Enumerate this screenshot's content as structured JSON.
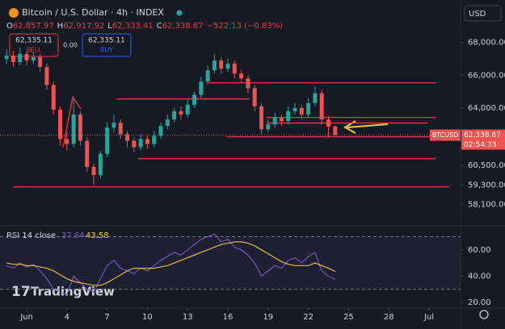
{
  "header": {
    "title": "Bitcoin / U.S. Dollar · 4h · INDEX",
    "ohlc": [
      {
        "key": "O",
        "label": "62,857.97"
      },
      {
        "key": "H",
        "label": "62,917.92"
      },
      {
        "key": "L",
        "label": "62,333.41"
      },
      {
        "key": "C",
        "label": "62,338.67"
      }
    ],
    "change": "−522.13 (−0.83%)",
    "sell_price": "62,335.11",
    "sell_label": "SELL",
    "spread": "0.00",
    "buy_price": "62,335.11",
    "buy_label": "BUY",
    "currency": "USD",
    "brand": "TradingView"
  },
  "chart_data": [
    {
      "type": "candlestick",
      "up_color": "#26a69a",
      "down_color": "#ef5350",
      "x": [
        -0.5,
        0,
        0.5,
        1,
        1.5,
        2,
        2.5,
        3,
        3.5,
        4,
        4.5,
        5,
        5.5,
        6,
        6.5,
        7,
        7.5,
        8,
        8.5,
        9,
        9.5,
        10,
        10.5,
        11,
        11.5,
        12,
        12.5,
        13,
        13.5,
        14,
        14.5,
        15,
        15.5,
        16,
        16.5,
        17,
        17.5,
        18,
        18.5,
        19,
        19.5,
        20,
        20.5,
        21,
        21.5,
        22,
        22.5,
        23,
        23.5,
        24
      ],
      "open": [
        67000,
        67200,
        66800,
        67300,
        66900,
        67100,
        66500,
        65400,
        63900,
        62100,
        61800,
        63600,
        62000,
        60400,
        59900,
        61200,
        62800,
        63100,
        62400,
        62000,
        61600,
        62100,
        61800,
        62300,
        62900,
        63300,
        63800,
        63600,
        64200,
        64800,
        65600,
        66300,
        66900,
        66400,
        66700,
        66100,
        65800,
        65200,
        64100,
        62700,
        63000,
        63400,
        63200,
        63800,
        64000,
        63600,
        64300,
        64900,
        63300,
        62857.97
      ],
      "high": [
        67600,
        67500,
        67700,
        67500,
        67400,
        67300,
        66700,
        65600,
        64100,
        62500,
        64600,
        63800,
        62200,
        60600,
        61400,
        63100,
        63600,
        63300,
        62600,
        62200,
        62400,
        62300,
        62600,
        63100,
        63600,
        64000,
        64100,
        64500,
        65000,
        65900,
        66600,
        67300,
        67100,
        67000,
        66900,
        66300,
        66000,
        65400,
        64300,
        63300,
        63700,
        63600,
        64100,
        64300,
        64200,
        64600,
        65300,
        65100,
        63500,
        62917.92
      ],
      "low": [
        66700,
        66500,
        66600,
        66600,
        66700,
        66200,
        65100,
        63600,
        61700,
        61400,
        61600,
        61700,
        60100,
        59300,
        59700,
        61000,
        62500,
        62100,
        61600,
        61300,
        61400,
        61500,
        61600,
        62100,
        62700,
        63100,
        63300,
        63400,
        64000,
        64600,
        65400,
        66100,
        66100,
        66200,
        65800,
        65500,
        64900,
        63800,
        62400,
        62500,
        62800,
        62900,
        63000,
        63600,
        63300,
        63400,
        64100,
        63000,
        62200,
        62333.41
      ],
      "close": [
        67200,
        66800,
        67300,
        66900,
        67100,
        66500,
        65400,
        63900,
        62100,
        61800,
        63600,
        62000,
        60400,
        59900,
        61200,
        62800,
        63100,
        62400,
        62000,
        61600,
        62100,
        61800,
        62300,
        62900,
        63300,
        63800,
        63600,
        64200,
        64800,
        65600,
        66300,
        66900,
        66400,
        66700,
        66100,
        65800,
        65200,
        64100,
        62700,
        63000,
        63400,
        63200,
        63800,
        64000,
        63600,
        64300,
        64900,
        63300,
        62860,
        62338.67
      ],
      "xlim": [
        -0.99,
        33.35
      ],
      "ylim": [
        57050,
        70100
      ],
      "yticks": [
        {
          "value": 68000,
          "label": "68,000.00"
        },
        {
          "value": 66000,
          "label": "66,000.00"
        },
        {
          "value": 64000,
          "label": "64,000.00"
        },
        {
          "value": 60500,
          "label": "60,500.00"
        },
        {
          "value": 59300,
          "label": "59,300.00"
        },
        {
          "value": 58100,
          "label": "58,100.00"
        }
      ],
      "hlines": [
        {
          "price": 65540,
          "from": 14.6,
          "to": 31.5
        },
        {
          "price": 64550,
          "from": 7.7,
          "to": 17.6
        },
        {
          "price": 63420,
          "from": 18.9,
          "to": 31.5
        },
        {
          "price": 63080,
          "from": 18.9,
          "to": 30.9
        },
        {
          "price": 62240,
          "from": 15.9,
          "to": 31.5
        },
        {
          "price": 60900,
          "from": 9.3,
          "to": 31.5
        },
        {
          "price": 59180,
          "from": 0,
          "to": 32.5
        }
      ],
      "hline_color": "#f23645",
      "symbol_tag": "BTCUSD",
      "last_price_label": "62,338.67",
      "countdown": "02:54:33"
    },
    {
      "type": "line",
      "title": "RSI 14 close",
      "x": [
        -0.5,
        0,
        0.5,
        1,
        1.5,
        2,
        2.5,
        3,
        3.5,
        4,
        4.5,
        5,
        5.5,
        6,
        6.5,
        7,
        7.5,
        8,
        8.5,
        9,
        9.5,
        10,
        10.5,
        11,
        11.5,
        12,
        12.5,
        13,
        13.5,
        14,
        14.5,
        15,
        15.5,
        16,
        16.5,
        17,
        17.5,
        18,
        18.5,
        19,
        19.5,
        20,
        20.5,
        21,
        21.5,
        22,
        22.5,
        23,
        23.5,
        24
      ],
      "series": [
        {
          "color": "#7e57c2",
          "values": [
            48,
            46,
            50,
            47,
            49,
            44,
            38,
            30,
            28,
            26,
            40,
            35,
            30,
            28,
            38,
            48,
            52,
            46,
            44,
            42,
            46,
            44,
            48,
            52,
            55,
            58,
            56,
            60,
            64,
            68,
            70,
            72,
            66,
            68,
            62,
            60,
            56,
            50,
            40,
            44,
            48,
            46,
            52,
            54,
            50,
            55,
            58,
            44,
            40,
            37.64
          ]
        },
        {
          "color": "#f7c948",
          "values": [
            50,
            49,
            49,
            48,
            48,
            47,
            46,
            44,
            41,
            38,
            36,
            35,
            34,
            33,
            33,
            35,
            38,
            41,
            44,
            46,
            46,
            46,
            46,
            47,
            48,
            50,
            52,
            54,
            56,
            58,
            60,
            62,
            64,
            65,
            66,
            66,
            65,
            63,
            60,
            57,
            54,
            51,
            49,
            48,
            48,
            48,
            50,
            48,
            46,
            43.58
          ]
        }
      ],
      "bands": [
        70,
        30
      ],
      "xlim": [
        -0.99,
        33.35
      ],
      "ylim": [
        17,
        76.4
      ],
      "yticks": [
        {
          "value": 60,
          "label": "60.00"
        },
        {
          "value": 40,
          "label": "40.00"
        },
        {
          "value": 20,
          "label": "20.00"
        }
      ],
      "xticks": [
        {
          "value": 1,
          "label": "Jun"
        },
        4,
        7,
        10,
        13,
        16,
        19,
        22,
        25,
        28,
        {
          "value": 31,
          "label": "Jul"
        }
      ]
    }
  ]
}
